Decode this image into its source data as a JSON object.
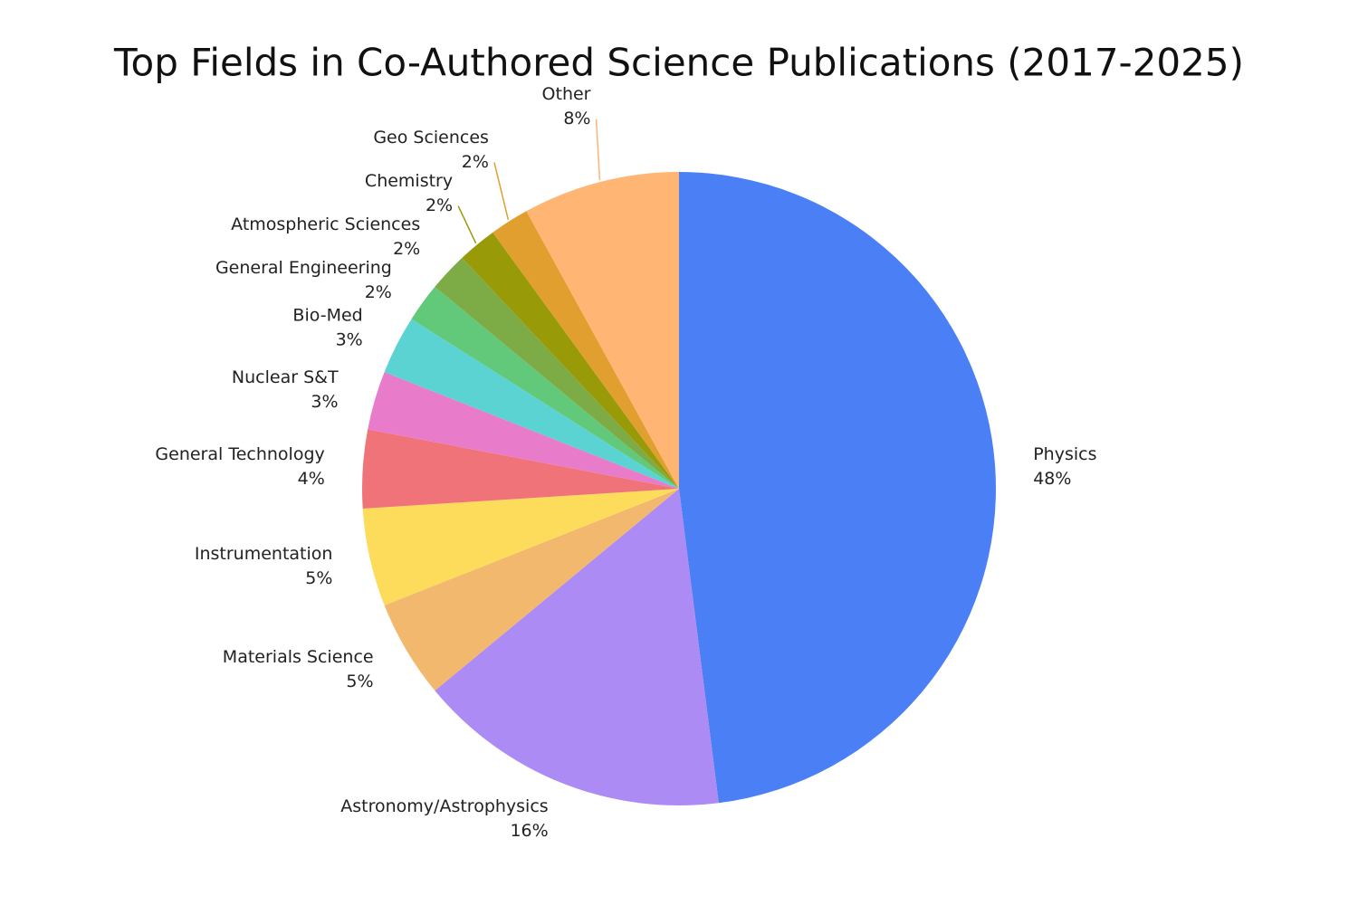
{
  "chart_data": {
    "type": "pie",
    "title": "Top Fields in Co-Authored Science Publications (2017-2025)",
    "categories": [
      "Physics",
      "Astronomy/Astrophysics",
      "Materials Science",
      "Instrumentation",
      "General Technology",
      "Nuclear S&T",
      "Bio-Med",
      "General Engineering",
      "Atmospheric Sciences",
      "Chemistry",
      "Geo Sciences",
      "Other"
    ],
    "values": [
      48,
      16,
      5,
      5,
      4,
      3,
      3,
      2,
      2,
      2,
      2,
      8
    ],
    "value_labels": [
      "48%",
      "16%",
      "5%",
      "5%",
      "4%",
      "3%",
      "3%",
      "2%",
      "2%",
      "2%",
      "2%",
      "8%"
    ],
    "colors": [
      "#4a7ff5",
      "#ac8cf4",
      "#f2b96e",
      "#fddc5c",
      "#ef7379",
      "#e87bca",
      "#5cd3d3",
      "#62c97a",
      "#7dab45",
      "#999a07",
      "#e09f2e",
      "#ffb574"
    ]
  }
}
